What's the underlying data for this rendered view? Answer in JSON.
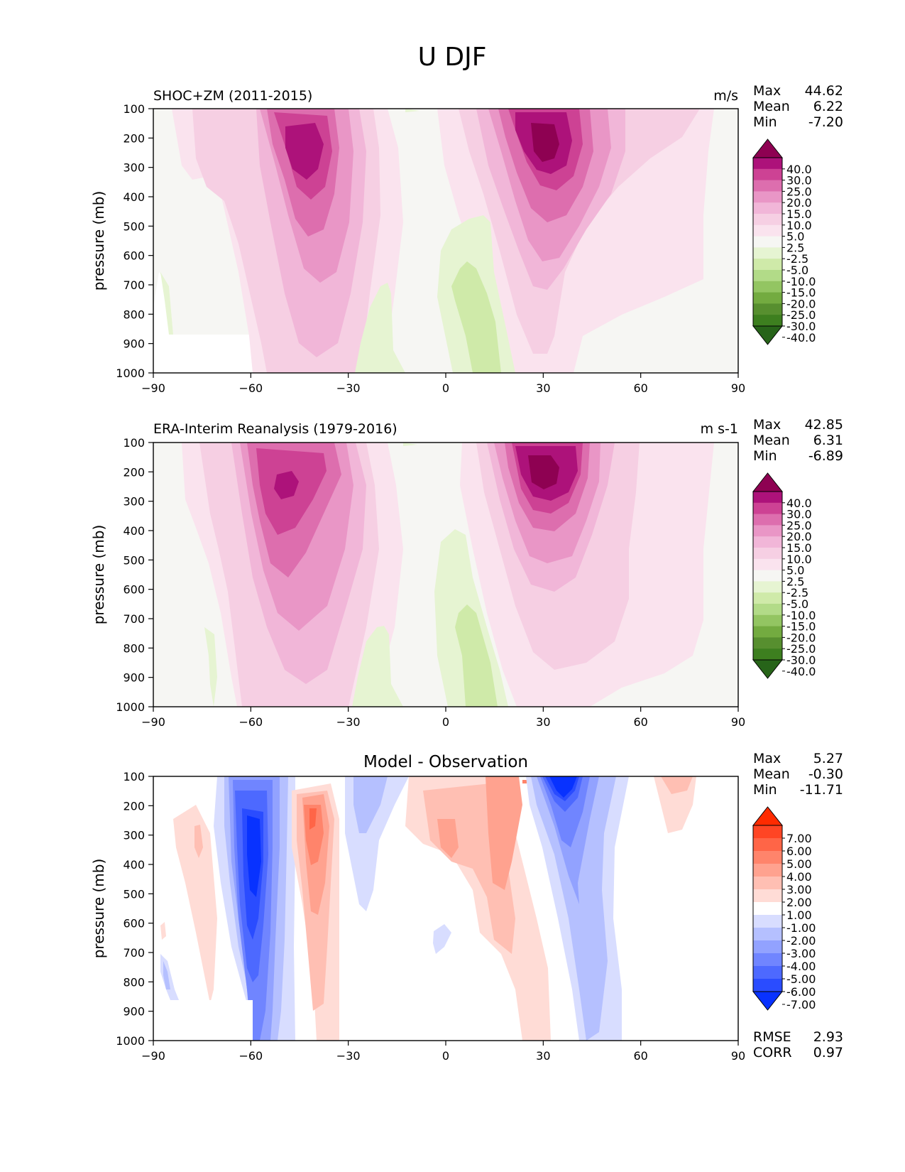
{
  "figure": {
    "title": "U DJF"
  },
  "axes_common": {
    "ylabel": "pressure (mb)",
    "x_ticks": [
      "−90",
      "−60",
      "−30",
      "0",
      "30",
      "60",
      "90"
    ],
    "y_ticks": [
      "100",
      "200",
      "300",
      "400",
      "500",
      "600",
      "700",
      "800",
      "900",
      "1000"
    ]
  },
  "panels": [
    {
      "title_left": "SHOC+ZM (2011-2015)",
      "title_right": "m/s",
      "stats": [
        {
          "label": "Max",
          "value": "44.62"
        },
        {
          "label": "Mean",
          "value": "6.22"
        },
        {
          "label": "Min",
          "value": "-7.20"
        }
      ],
      "colorbar_labels": [
        "40.0",
        "30.0",
        "25.0",
        "20.0",
        "15.0",
        "10.0",
        "5.0",
        "2.5",
        "-2.5",
        "-5.0",
        "-10.0",
        "-15.0",
        "-20.0",
        "-25.0",
        "-30.0",
        "-40.0"
      ]
    },
    {
      "title_left": "ERA-Interim Reanalysis (1979-2016)",
      "title_right": "m s-1",
      "stats": [
        {
          "label": "Max",
          "value": "42.85"
        },
        {
          "label": "Mean",
          "value": "6.31"
        },
        {
          "label": "Min",
          "value": "-6.89"
        }
      ],
      "colorbar_labels": [
        "40.0",
        "30.0",
        "25.0",
        "20.0",
        "15.0",
        "10.0",
        "5.0",
        "2.5",
        "-2.5",
        "-5.0",
        "-10.0",
        "-15.0",
        "-20.0",
        "-25.0",
        "-30.0",
        "-40.0"
      ]
    },
    {
      "title_center": "Model - Observation",
      "stats": [
        {
          "label": "Max",
          "value": "5.27"
        },
        {
          "label": "Mean",
          "value": "-0.30"
        },
        {
          "label": "Min",
          "value": "-11.71"
        }
      ],
      "colorbar_labels": [
        "7.00",
        "6.00",
        "5.00",
        "4.00",
        "3.00",
        "2.00",
        "1.00",
        "-1.00",
        "-2.00",
        "-3.00",
        "-4.00",
        "-5.00",
        "-6.00",
        "-7.00"
      ],
      "extra_stats": [
        {
          "label": "RMSE",
          "value": "2.93"
        },
        {
          "label": "CORR",
          "value": "0.97"
        }
      ]
    }
  ],
  "chart_data": [
    {
      "type": "heatmap",
      "subtype": "contourf",
      "title": "SHOC+ZM (2011-2015)",
      "units": "m/s",
      "xlabel": "",
      "ylabel": "pressure (mb)",
      "xlim": [
        -90,
        90
      ],
      "ylim": [
        1000,
        100
      ],
      "levels": [
        -40,
        -30,
        -25,
        -20,
        -15,
        -10,
        -5,
        -2.5,
        2.5,
        5,
        10,
        15,
        20,
        25,
        30,
        40
      ],
      "colors": [
        "#276419",
        "#3d7f1f",
        "#578f2f",
        "#73ab40",
        "#93c562",
        "#b2db88",
        "#cfeaa9",
        "#e6f4d2",
        "#f6f6f3",
        "#fae3ee",
        "#f6cfe3",
        "#f1b6d8",
        "#e996c6",
        "#dd6eae",
        "#cd4294",
        "#ad127a",
        "#8e0152"
      ],
      "extend": "both",
      "features": [
        {
          "name": "southern jet",
          "lat": -45,
          "p": 230,
          "max": 40
        },
        {
          "name": "northern jet",
          "lat": 28,
          "p": 220,
          "max": 44.62
        },
        {
          "name": "tropical easterlies",
          "lat": 10,
          "p": 850,
          "min": -7.2
        }
      ],
      "stats": {
        "Max": 44.62,
        "Mean": 6.22,
        "Min": -7.2
      }
    },
    {
      "type": "heatmap",
      "subtype": "contourf",
      "title": "ERA-Interim Reanalysis (1979-2016)",
      "units": "m s-1",
      "xlabel": "",
      "ylabel": "pressure (mb)",
      "xlim": [
        -90,
        90
      ],
      "ylim": [
        1000,
        100
      ],
      "levels": [
        -40,
        -30,
        -25,
        -20,
        -15,
        -10,
        -5,
        -2.5,
        2.5,
        5,
        10,
        15,
        20,
        25,
        30,
        40
      ],
      "colors": [
        "#276419",
        "#3d7f1f",
        "#578f2f",
        "#73ab40",
        "#93c562",
        "#b2db88",
        "#cfeaa9",
        "#e6f4d2",
        "#f6f6f3",
        "#fae3ee",
        "#f6cfe3",
        "#f1b6d8",
        "#e996c6",
        "#dd6eae",
        "#cd4294",
        "#ad127a",
        "#8e0152"
      ],
      "extend": "both",
      "features": [
        {
          "name": "southern jet",
          "lat": -48,
          "p": 240,
          "max": 35
        },
        {
          "name": "northern jet",
          "lat": 30,
          "p": 200,
          "max": 42.85
        },
        {
          "name": "tropical easterlies",
          "lat": 10,
          "p": 850,
          "min": -6.89
        }
      ],
      "stats": {
        "Max": 42.85,
        "Mean": 6.31,
        "Min": -6.89
      }
    },
    {
      "type": "heatmap",
      "subtype": "contourf",
      "title": "Model - Observation",
      "xlabel": "",
      "ylabel": "pressure (mb)",
      "xlim": [
        -90,
        90
      ],
      "ylim": [
        1000,
        100
      ],
      "levels": [
        -7,
        -6,
        -5,
        -4,
        -3,
        -2,
        -1,
        1,
        2,
        3,
        4,
        5,
        6,
        7
      ],
      "colors": [
        "#0832ff",
        "#2a4cff",
        "#4d69ff",
        "#7085ff",
        "#92a2ff",
        "#b5c0ff",
        "#d8ddff",
        "#ffffff",
        "#ffdcd6",
        "#ffbfb3",
        "#ffa28f",
        "#ff846b",
        "#ff6547",
        "#ff4524",
        "#ff2b00"
      ],
      "extend": "both",
      "features": [
        {
          "name": "negative core",
          "lat": -58,
          "p": 350,
          "value": -6
        },
        {
          "name": "positive core",
          "lat": -38,
          "p": 250,
          "value": 4
        },
        {
          "name": "upper negative maximum",
          "lat": 38,
          "p": 120,
          "value": -11.71
        },
        {
          "name": "positive region",
          "lat": 5,
          "p": 300,
          "value": 3
        }
      ],
      "stats": {
        "Max": 5.27,
        "Mean": -0.3,
        "Min": -11.71,
        "RMSE": 2.93,
        "CORR": 0.97
      }
    }
  ]
}
